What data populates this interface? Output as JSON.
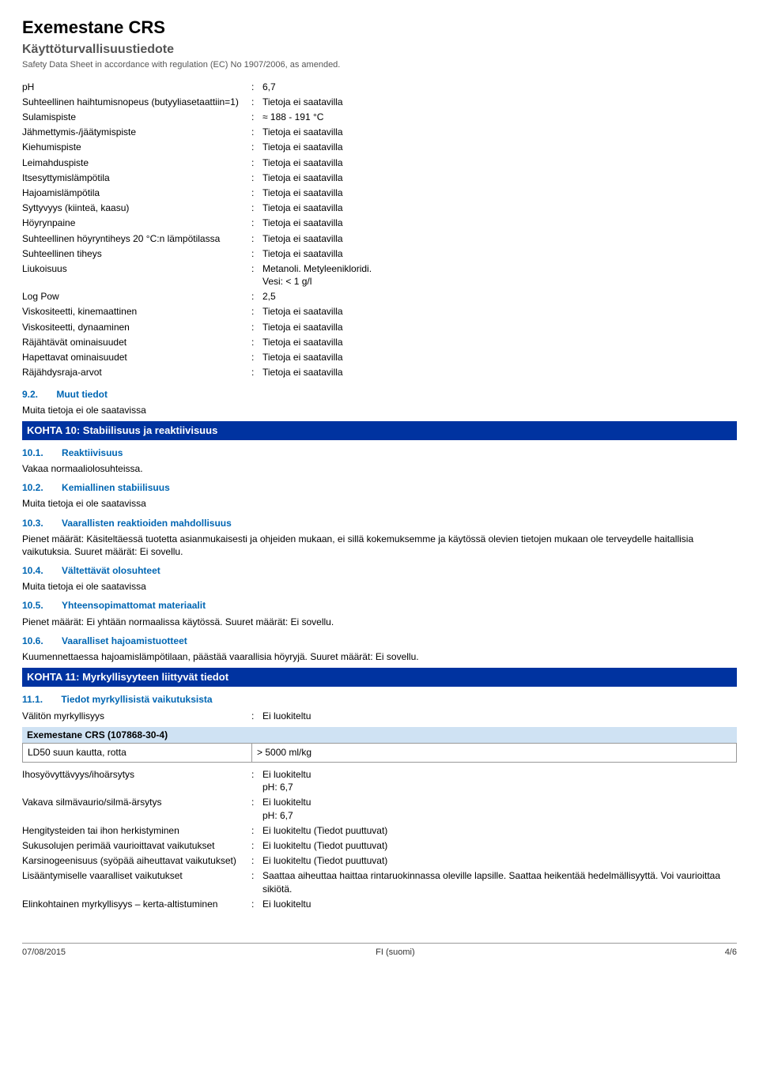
{
  "header": {
    "title": "Exemestane CRS",
    "subtitle": "Käyttöturvallisuustiedote",
    "regline": "Safety Data Sheet in accordance with regulation (EC) No 1907/2006, as amended."
  },
  "colon": ":",
  "kvlist1": [
    {
      "label": "pH",
      "value": "6,7"
    },
    {
      "label": "Suhteellinen haihtumisnopeus (butyyliasetaattiin=1)",
      "value": "Tietoja ei saatavilla"
    },
    {
      "label": "Sulamispiste",
      "value": "≈ 188 - 191 °C"
    },
    {
      "label": "Jähmettymis-/jäätymispiste",
      "value": "Tietoja ei saatavilla"
    },
    {
      "label": "Kiehumispiste",
      "value": "Tietoja ei saatavilla"
    },
    {
      "label": "Leimahduspiste",
      "value": "Tietoja ei saatavilla"
    },
    {
      "label": "Itsesyttymislämpötila",
      "value": "Tietoja ei saatavilla"
    },
    {
      "label": "Hajoamislämpötila",
      "value": "Tietoja ei saatavilla"
    },
    {
      "label": "Syttyvyys (kiinteä, kaasu)",
      "value": "Tietoja ei saatavilla"
    },
    {
      "label": "Höyrynpaine",
      "value": "Tietoja ei saatavilla"
    },
    {
      "label": "Suhteellinen höyryntiheys 20 °C:n lämpötilassa",
      "value": "Tietoja ei saatavilla"
    },
    {
      "label": "Suhteellinen tiheys",
      "value": "Tietoja ei saatavilla"
    },
    {
      "label": "Liukoisuus",
      "value": "Metanoli. Metyleenikloridi.\nVesi: < 1 g/l"
    },
    {
      "label": "Log Pow",
      "value": "2,5"
    },
    {
      "label": "Viskositeetti, kinemaattinen",
      "value": "Tietoja ei saatavilla"
    },
    {
      "label": "Viskositeetti, dynaaminen",
      "value": "Tietoja ei saatavilla"
    },
    {
      "label": "Räjähtävät ominaisuudet",
      "value": "Tietoja ei saatavilla"
    },
    {
      "label": "Hapettavat ominaisuudet",
      "value": "Tietoja ei saatavilla"
    },
    {
      "label": "Räjähdysraja-arvot",
      "value": "Tietoja ei saatavilla"
    }
  ],
  "sec92": {
    "num": "9.2.",
    "title": "Muut tiedot",
    "body": "Muita tietoja ei ole saatavissa"
  },
  "kohta10": {
    "title": "KOHTA 10: Stabiilisuus ja reaktiivisuus"
  },
  "sec101": {
    "num": "10.1.",
    "title": "Reaktiivisuus",
    "body": "Vakaa normaaliolosuhteissa."
  },
  "sec102": {
    "num": "10.2.",
    "title": "Kemiallinen stabiilisuus",
    "body": "Muita tietoja ei ole saatavissa"
  },
  "sec103": {
    "num": "10.3.",
    "title": "Vaarallisten reaktioiden mahdollisuus",
    "body": "Pienet määrät: Käsiteltäessä tuotetta asianmukaisesti ja ohjeiden mukaan, ei sillä kokemuksemme ja käytössä olevien tietojen mukaan ole terveydelle haitallisia vaikutuksia. Suuret määrät: Ei sovellu."
  },
  "sec104": {
    "num": "10.4.",
    "title": "Vältettävät olosuhteet",
    "body": "Muita tietoja ei ole saatavissa"
  },
  "sec105": {
    "num": "10.5.",
    "title": "Yhteensopimattomat materiaalit",
    "body": "Pienet määrät: Ei yhtään normaalissa käytössä. Suuret määrät: Ei sovellu."
  },
  "sec106": {
    "num": "10.6.",
    "title": "Vaaralliset hajoamistuotteet",
    "body": "Kuumennettaessa hajoamislämpötilaan, päästää vaarallisia höyryjä. Suuret määrät: Ei sovellu."
  },
  "kohta11": {
    "title": "KOHTA 11: Myrkyllisyyteen liittyvät tiedot"
  },
  "sec111": {
    "num": "11.1.",
    "title": "Tiedot myrkyllisistä vaikutuksista"
  },
  "kvlist2a": [
    {
      "label": "Välitön myrkyllisyys",
      "value": "Ei luokiteltu"
    }
  ],
  "table": {
    "header": "Exemestane CRS (107868-30-4)",
    "rows": [
      {
        "c1": "LD50 suun kautta, rotta",
        "c2": "> 5000 ml/kg"
      }
    ]
  },
  "kvlist2b": [
    {
      "label": "Ihosyövyttävyys/ihoärsytys",
      "value": "Ei luokiteltu\npH: 6,7"
    },
    {
      "label": "Vakava silmävaurio/silmä-ärsytys",
      "value": "Ei luokiteltu\npH: 6,7"
    },
    {
      "label": "Hengitysteiden tai ihon herkistyminen",
      "value": "Ei luokiteltu (Tiedot puuttuvat)"
    },
    {
      "label": "Sukusolujen perimää vaurioittavat vaikutukset",
      "value": "Ei luokiteltu (Tiedot puuttuvat)"
    },
    {
      "label": "Karsinogeenisuus (syöpää aiheuttavat vaikutukset)",
      "value": "Ei luokiteltu (Tiedot puuttuvat)"
    },
    {
      "label": "Lisääntymiselle vaaralliset vaikutukset",
      "value": "Saattaa aiheuttaa haittaa rintaruokinnassa oleville lapsille. Saattaa heikentää hedelmällisyyttä. Voi vaurioittaa sikiötä."
    },
    {
      "label": "Elinkohtainen myrkyllisyys – kerta-altistuminen",
      "value": "Ei luokiteltu"
    }
  ],
  "footer": {
    "left": "07/08/2015",
    "center": "FI (suomi)",
    "right": "4/6"
  }
}
